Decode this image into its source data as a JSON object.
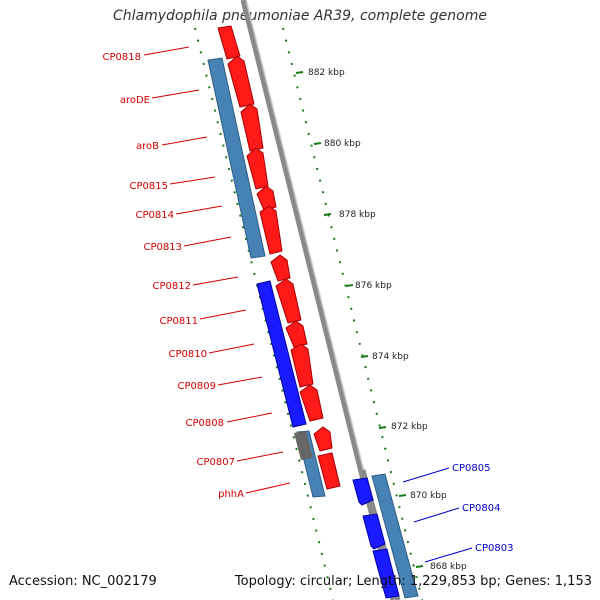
{
  "title": "Chlamydophila pneumoniae AR39, complete genome",
  "footer": {
    "accession": "Accession: NC_002179",
    "summary": "Topology: circular; Length: 1,229,853 bp; Genes: 1,153"
  },
  "colors": {
    "forward_gene": "#ff1a1a",
    "reverse_gene": "#1a1aff",
    "cds_region": "#4682b4",
    "backbone": "#8a8a8a",
    "tick": "#1a7a1a",
    "forward_label": "#d40000",
    "reverse_label": "#0000cc"
  },
  "scale_labels": [
    "882 kbp",
    "880 kbp",
    "878 kbp",
    "876 kbp",
    "874 kbp",
    "872 kbp",
    "870 kbp",
    "868 kbp"
  ],
  "gene_labels_left": [
    "CP0818",
    "aroDE",
    "aroB",
    "CP0815",
    "CP0814",
    "CP0813",
    "CP0812",
    "CP0811",
    "CP0810",
    "CP0809",
    "CP0808",
    "CP0807",
    "phhA"
  ],
  "gene_labels_right": [
    "CP0805",
    "CP0804",
    "CP0803"
  ]
}
